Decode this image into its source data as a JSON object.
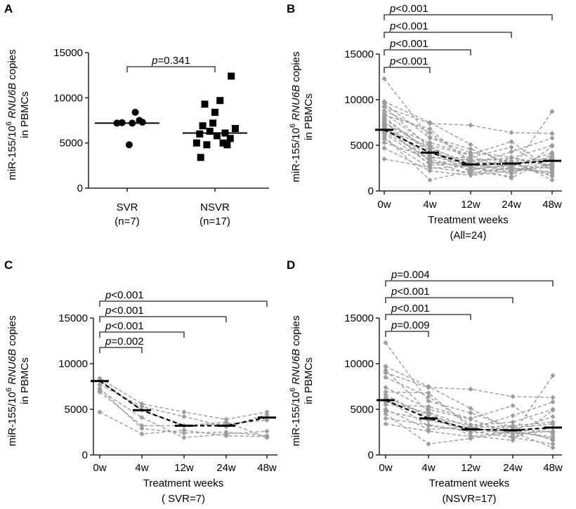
{
  "figure": {
    "ylabel": {
      "prefix": "miR-155/10",
      "exp": "6",
      "gene": "RNU6B",
      "suffix": " copies",
      "line2": "in PBMCs"
    },
    "p_prefix": "p"
  },
  "chart_data": [
    {
      "panel": "A",
      "type": "scatter",
      "title": "",
      "categories": [
        {
          "label": "SVR",
          "sub": "(n=7)"
        },
        {
          "label": "NSVR",
          "sub": "(n=17)"
        }
      ],
      "ylim": [
        0,
        15000
      ],
      "yticks": [
        0,
        5000,
        10000,
        15000
      ],
      "xlabel": "",
      "series": [
        {
          "name": "SVR",
          "marker": "circle",
          "points": [
            [
              -0.1,
              7200
            ],
            [
              0.05,
              7200
            ],
            [
              0.12,
              7500
            ],
            [
              -0.05,
              7250
            ],
            [
              0.08,
              8400
            ],
            [
              0.15,
              7300
            ],
            [
              0.02,
              4800
            ]
          ],
          "median": 7200
        },
        {
          "name": "NSVR",
          "marker": "square",
          "points": [
            [
              -0.18,
              5000
            ],
            [
              -0.08,
              4800
            ],
            [
              -0.14,
              3400
            ],
            [
              -0.12,
              6900
            ],
            [
              -0.05,
              6300
            ],
            [
              0.02,
              5800
            ],
            [
              -0.1,
              9300
            ],
            [
              -0.02,
              7200
            ],
            [
              0.05,
              9700
            ],
            [
              0.1,
              6100
            ],
            [
              0.15,
              5500
            ],
            [
              -0.15,
              6000
            ],
            [
              0.2,
              6600
            ],
            [
              0.08,
              5000
            ],
            [
              0.0,
              8400
            ],
            [
              0.12,
              4800
            ],
            [
              0.16,
              12400
            ]
          ],
          "median": 6100
        }
      ],
      "comparisons": [
        {
          "from": 0,
          "to": 1,
          "op": "=",
          "value": "0.341"
        }
      ]
    },
    {
      "panel": "B",
      "type": "line",
      "ylim": [
        0,
        15000
      ],
      "yticks": [
        0,
        5000,
        10000,
        15000
      ],
      "categories": [
        "0w",
        "4w",
        "12w",
        "24w",
        "48w"
      ],
      "xlabel": "Treatment weeks",
      "xlabel2": "(All=24)",
      "medians": [
        6700,
        4200,
        2900,
        3000,
        3300
      ],
      "series": [
        [
          12300,
          5900,
          4600,
          3000,
          3400
        ],
        [
          9800,
          7500,
          5100,
          2500,
          2000
        ],
        [
          9600,
          5800,
          4200,
          3700,
          2800
        ],
        [
          9300,
          4700,
          3000,
          2300,
          8700
        ],
        [
          9200,
          7400,
          7200,
          6400,
          6300
        ],
        [
          8800,
          6400,
          3300,
          3600,
          5000
        ],
        [
          8500,
          5000,
          3900,
          2300,
          2600
        ],
        [
          8300,
          6800,
          3000,
          3200,
          3600
        ],
        [
          8100,
          4100,
          3300,
          2700,
          4200
        ],
        [
          7900,
          4400,
          2100,
          1600,
          4900
        ],
        [
          7700,
          3200,
          2600,
          3100,
          1600
        ],
        [
          7500,
          4600,
          2400,
          2800,
          2500
        ],
        [
          7300,
          5300,
          4000,
          5400,
          2300
        ],
        [
          7200,
          2800,
          3100,
          2000,
          3000
        ],
        [
          7100,
          3800,
          2900,
          4300,
          5800
        ],
        [
          6900,
          3300,
          1800,
          2500,
          2100
        ],
        [
          6700,
          4900,
          2600,
          1900,
          4000
        ],
        [
          6500,
          3500,
          2300,
          2900,
          3500
        ],
        [
          6300,
          3000,
          3500,
          3300,
          1200
        ],
        [
          6000,
          1200,
          2200,
          3600,
          2700
        ],
        [
          5700,
          2500,
          2700,
          1400,
          3800
        ],
        [
          5300,
          3600,
          3700,
          4800,
          2300
        ],
        [
          4700,
          2200,
          1700,
          2200,
          2900
        ],
        [
          3500,
          2600,
          2000,
          2600,
          1800
        ]
      ],
      "comparisons": [
        {
          "from": 0,
          "to": 1,
          "op": "<",
          "value": "0.001"
        },
        {
          "from": 0,
          "to": 2,
          "op": "<",
          "value": "0.001"
        },
        {
          "from": 0,
          "to": 3,
          "op": "<",
          "value": "0.001"
        },
        {
          "from": 0,
          "to": 4,
          "op": "<",
          "value": "0.001"
        }
      ]
    },
    {
      "panel": "C",
      "type": "line",
      "ylim": [
        0,
        15000
      ],
      "yticks": [
        0,
        5000,
        10000,
        15000
      ],
      "categories": [
        "0w",
        "4w",
        "12w",
        "24w",
        "48w"
      ],
      "xlabel": "Treatment weeks",
      "xlabel2": "( SVR=7)",
      "medians": [
        8100,
        4900,
        3200,
        3200,
        4100
      ],
      "series": [
        [
          8400,
          5600,
          4700,
          3900,
          4700
        ],
        [
          8200,
          4900,
          3200,
          3400,
          3800
        ],
        [
          7700,
          5300,
          4200,
          3100,
          4400
        ],
        [
          7300,
          2900,
          2400,
          2500,
          2100
        ],
        [
          7100,
          4100,
          1900,
          2300,
          2600
        ],
        [
          6900,
          3200,
          3200,
          3600,
          1900
        ],
        [
          4700,
          2300,
          2700,
          2100,
          2000
        ]
      ],
      "comparisons": [
        {
          "from": 0,
          "to": 1,
          "op": "=",
          "value": "0.002"
        },
        {
          "from": 0,
          "to": 2,
          "op": "<",
          "value": "0.001"
        },
        {
          "from": 0,
          "to": 3,
          "op": "<",
          "value": "0.001"
        },
        {
          "from": 0,
          "to": 4,
          "op": "<",
          "value": "0.001"
        }
      ]
    },
    {
      "panel": "D",
      "type": "line",
      "ylim": [
        0,
        15000
      ],
      "yticks": [
        0,
        5000,
        10000,
        15000
      ],
      "categories": [
        "0w",
        "4w",
        "12w",
        "24w",
        "48w"
      ],
      "xlabel": "Treatment weeks",
      "xlabel2": "(NSVR=17)",
      "medians": [
        6000,
        4000,
        2800,
        2700,
        3000
      ],
      "series": [
        [
          12300,
          5900,
          4600,
          3000,
          3400
        ],
        [
          9700,
          7500,
          5100,
          2500,
          2000
        ],
        [
          9300,
          4700,
          3000,
          2300,
          8700
        ],
        [
          9000,
          7400,
          7200,
          6400,
          6300
        ],
        [
          8500,
          6400,
          3300,
          3600,
          5000
        ],
        [
          7400,
          5000,
          3900,
          2300,
          2600
        ],
        [
          6900,
          6800,
          3000,
          3200,
          3600
        ],
        [
          6600,
          4100,
          3300,
          2700,
          4200
        ],
        [
          6300,
          4400,
          2100,
          1600,
          4900
        ],
        [
          6100,
          3200,
          2600,
          3100,
          1600
        ],
        [
          5800,
          4600,
          2400,
          2800,
          2500
        ],
        [
          5500,
          5300,
          4000,
          5400,
          2300
        ],
        [
          5000,
          2800,
          3100,
          2000,
          3000
        ],
        [
          4800,
          3800,
          2900,
          4300,
          5800
        ],
        [
          4500,
          1200,
          1800,
          2500,
          800
        ],
        [
          4000,
          3300,
          2600,
          1900,
          1200
        ],
        [
          3400,
          2600,
          2000,
          2600,
          1800
        ]
      ],
      "comparisons": [
        {
          "from": 0,
          "to": 1,
          "op": "=",
          "value": "0.009"
        },
        {
          "from": 0,
          "to": 2,
          "op": "<",
          "value": "0.001"
        },
        {
          "from": 0,
          "to": 3,
          "op": "<",
          "value": "0.001"
        },
        {
          "from": 0,
          "to": 4,
          "op": "=",
          "value": "0.004"
        }
      ]
    }
  ]
}
